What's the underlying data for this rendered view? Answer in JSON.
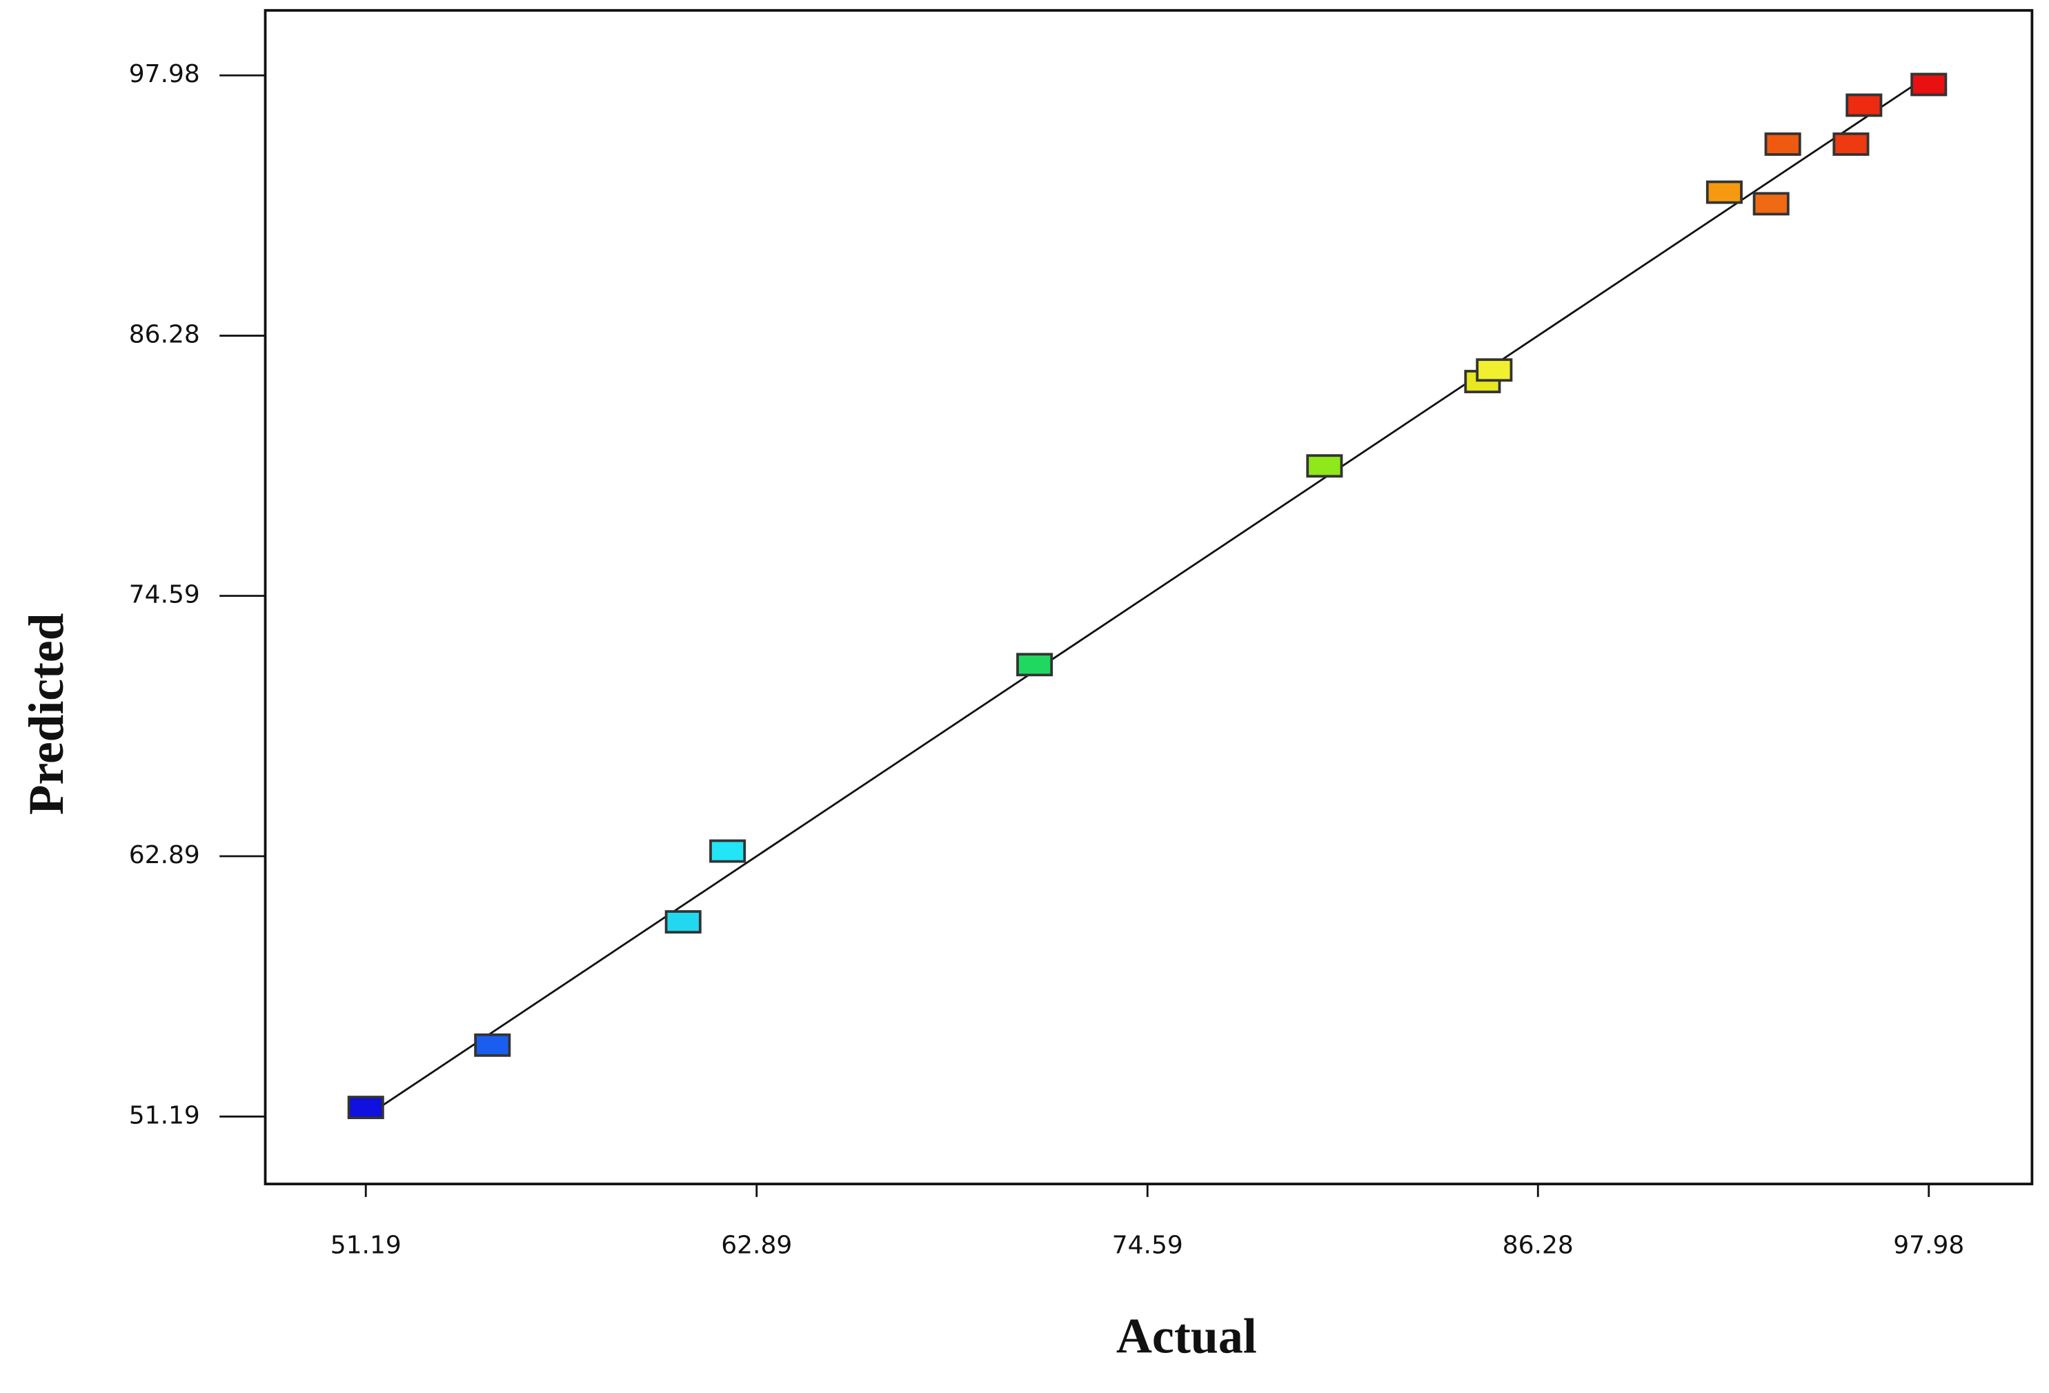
{
  "chart_data": {
    "type": "scatter",
    "x_label": "Actual",
    "y_label": "Predicted",
    "x": [
      51.19,
      54.98,
      60.69,
      62.02,
      71.21,
      79.89,
      84.62,
      84.97,
      91.86,
      93.26,
      93.61,
      95.65,
      96.04,
      97.98
    ],
    "values": [
      51.6,
      54.4,
      59.94,
      63.12,
      71.5,
      80.43,
      84.22,
      84.74,
      92.73,
      92.21,
      94.89,
      94.89,
      96.64,
      97.57
    ],
    "colors": [
      "#1010e0",
      "#1a5ef0",
      "#22d8f0",
      "#22e6f5",
      "#20d860",
      "#8ee81a",
      "#e8e820",
      "#f0f030",
      "#f59a10",
      "#f06a14",
      "#f05a10",
      "#ee3a10",
      "#ee2a10",
      "#e81010"
    ],
    "reference_line": {
      "x": [
        51.19,
        97.98
      ],
      "y": [
        51.19,
        97.98
      ]
    },
    "xlim": [
      48.18,
      101.07
    ],
    "ylim": [
      48.16,
      100.9
    ],
    "xticks": [
      51.19,
      62.89,
      74.59,
      86.28,
      97.98
    ],
    "yticks": [
      51.19,
      62.89,
      74.59,
      86.28,
      97.98
    ]
  }
}
